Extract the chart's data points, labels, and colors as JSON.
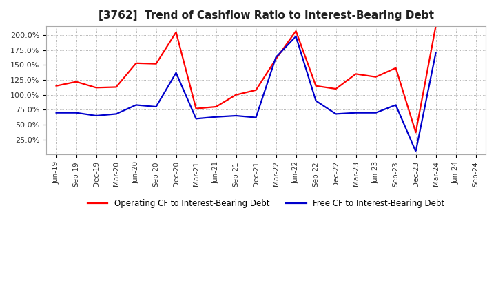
{
  "title": "[3762]  Trend of Cashflow Ratio to Interest-Bearing Debt",
  "x_labels": [
    "Jun-19",
    "Sep-19",
    "Dec-19",
    "Mar-20",
    "Jun-20",
    "Sep-20",
    "Dec-20",
    "Mar-21",
    "Jun-21",
    "Sep-21",
    "Dec-21",
    "Mar-22",
    "Jun-22",
    "Sep-22",
    "Dec-22",
    "Mar-23",
    "Jun-23",
    "Sep-23",
    "Dec-23",
    "Mar-24",
    "Jun-24",
    "Sep-24"
  ],
  "operating_cf": [
    115,
    122,
    112,
    113,
    153,
    152,
    205,
    77,
    80,
    100,
    108,
    160,
    207,
    115,
    110,
    135,
    130,
    145,
    37,
    215,
    null,
    null
  ],
  "free_cf": [
    70,
    70,
    65,
    68,
    83,
    80,
    137,
    60,
    63,
    65,
    62,
    163,
    198,
    90,
    68,
    70,
    70,
    83,
    5,
    170,
    null,
    null
  ],
  "operating_color": "#FF0000",
  "free_color": "#0000CC",
  "ylim": [
    0,
    215
  ],
  "yticks": [
    25,
    50,
    75,
    100,
    125,
    150,
    175,
    200
  ],
  "ytick_labels": [
    "25.0%",
    "50.0%",
    "75.0%",
    "100.0%",
    "125.0%",
    "150.0%",
    "175.0%",
    "200.0%"
  ],
  "legend_operating": "Operating CF to Interest-Bearing Debt",
  "legend_free": "Free CF to Interest-Bearing Debt",
  "bg_color": "#FFFFFF",
  "plot_bg_color": "#FFFFFF"
}
